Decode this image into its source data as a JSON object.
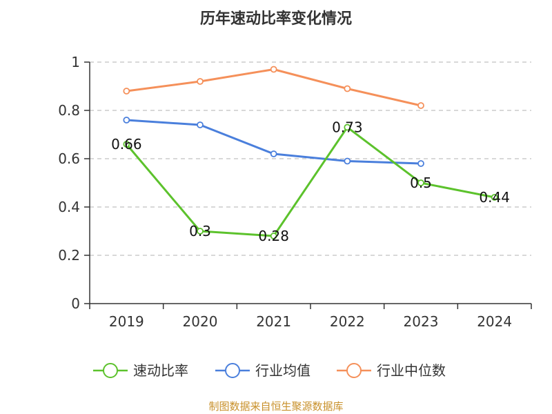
{
  "chart_data": {
    "type": "line",
    "title": "历年速动比率变化情况",
    "categories": [
      "2019",
      "2020",
      "2021",
      "2022",
      "2023",
      "2024"
    ],
    "ylim": [
      0,
      1
    ],
    "yticks": [
      "0",
      "0.2",
      "0.4",
      "0.6",
      "0.8",
      "1"
    ],
    "ytick_values": [
      0,
      0.2,
      0.4,
      0.6,
      0.8,
      1
    ],
    "grid": true,
    "legend_position": "bottom",
    "series": [
      {
        "name": "速动比率",
        "color": "#5cc22c",
        "values": [
          0.66,
          0.3,
          0.28,
          0.73,
          0.5,
          0.44
        ],
        "labels": [
          "0.66",
          "0.3",
          "0.28",
          "0.73",
          "0.5",
          "0.44"
        ]
      },
      {
        "name": "行业均值",
        "color": "#4a7fdc",
        "values": [
          0.76,
          0.74,
          0.62,
          0.59,
          0.58,
          null
        ]
      },
      {
        "name": "行业中位数",
        "color": "#f5905a",
        "values": [
          0.88,
          0.92,
          0.97,
          0.89,
          0.82,
          null
        ]
      }
    ]
  },
  "source": {
    "text": "制图数据来自恒生聚源数据库",
    "color": "#c8902a"
  }
}
